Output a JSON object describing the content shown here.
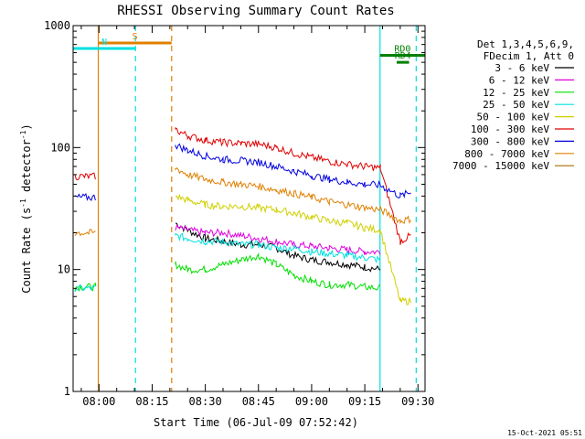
{
  "chart_data": {
    "type": "line",
    "title": "RHESSI Observing Summary Count Rates",
    "xlabel": "Start Time (06-Jul-09 07:52:42)",
    "ylabel_main": "Count Rate (s",
    "ylabel_sup": "-1",
    "ylabel_mid": " detector",
    "ylabel_end": ")",
    "y_scale": "log",
    "ylim": [
      1,
      1000
    ],
    "xlim_minutes": [
      -7.3,
      92.0
    ],
    "x_ticks": [
      {
        "label": "08:00",
        "minute": 0
      },
      {
        "label": "08:15",
        "minute": 15
      },
      {
        "label": "08:30",
        "minute": 30
      },
      {
        "label": "08:45",
        "minute": 45
      },
      {
        "label": "09:00",
        "minute": 60
      },
      {
        "label": "09:15",
        "minute": 75
      },
      {
        "label": "09:30",
        "minute": 90
      }
    ],
    "y_ticks": [
      {
        "label": "1000",
        "value": 1000
      },
      {
        "label": "100",
        "value": 100
      },
      {
        "label": "10",
        "value": 10
      },
      {
        "label": "1",
        "value": 1
      }
    ],
    "legend_header": [
      "Det 1,3,4,5,6,9,",
      "FDecim 1, Att 0"
    ],
    "legend_position": "top-right",
    "series": [
      {
        "name": "3 - 6 keV",
        "color": "#000000",
        "x": [
          21.6,
          25,
          30,
          35,
          40,
          45,
          50,
          55,
          60,
          65,
          70,
          75,
          79.4
        ],
        "y": [
          24,
          21,
          18,
          17,
          16,
          16,
          15,
          13,
          12,
          11.5,
          11,
          10.5,
          10
        ]
      },
      {
        "name": "6 - 12 keV",
        "color": "#e000e0",
        "x": [
          21.6,
          25,
          30,
          35,
          40,
          45,
          50,
          55,
          60,
          65,
          70,
          75,
          79.4
        ],
        "y": [
          22,
          21,
          20,
          20,
          19,
          18,
          17,
          16,
          15.5,
          15,
          14.5,
          14,
          14
        ]
      },
      {
        "name": "12 - 25 keV",
        "color": "#00e000",
        "x": [
          -6.8,
          -1,
          -0.9,
          21.6,
          25,
          30,
          35,
          40,
          45,
          50,
          55,
          60,
          65,
          70,
          75,
          79.4
        ],
        "y": [
          7.2,
          7.2,
          7.2,
          11,
          10,
          10,
          11,
          12,
          13,
          11,
          9,
          8,
          7.5,
          7.5,
          7.2,
          7
        ]
      },
      {
        "name": "25 - 50 keV",
        "color": "#00e0e0",
        "x": [
          -6.8,
          -1,
          21.6,
          25,
          30,
          35,
          40,
          45,
          50,
          55,
          60,
          65,
          70,
          75,
          79.4
        ],
        "y": [
          7,
          7,
          19,
          18,
          17,
          17,
          16,
          16,
          15,
          15,
          14,
          13.5,
          13,
          12.5,
          12
        ]
      },
      {
        "name": "50 - 100 keV",
        "color": "#d0d000",
        "x": [
          21.6,
          25,
          30,
          35,
          40,
          45,
          50,
          55,
          60,
          65,
          70,
          75,
          79.4,
          85,
          88
        ],
        "y": [
          40,
          37,
          34,
          33,
          33,
          32,
          31,
          29,
          27,
          25,
          24,
          22,
          21,
          5.5,
          5.5
        ]
      },
      {
        "name": "100 - 300 keV",
        "color": "#e00000",
        "x": [
          -6.8,
          -1,
          21.6,
          25,
          30,
          35,
          40,
          45,
          50,
          55,
          60,
          65,
          70,
          75,
          79.4,
          85,
          88
        ],
        "y": [
          58,
          58,
          140,
          125,
          115,
          110,
          108,
          107,
          100,
          90,
          83,
          77,
          73,
          70,
          68,
          17,
          19
        ]
      },
      {
        "name": "300 - 800 keV",
        "color": "#0000e0",
        "x": [
          -6.8,
          -1,
          21.6,
          25,
          30,
          35,
          40,
          45,
          50,
          55,
          60,
          65,
          70,
          75,
          79.4,
          85,
          88
        ],
        "y": [
          39,
          39,
          105,
          95,
          85,
          80,
          78,
          76,
          70,
          64,
          59,
          55,
          52,
          50,
          49,
          40,
          43
        ]
      },
      {
        "name": "800 - 7000 keV",
        "color": "#e08000",
        "x": [
          -6.8,
          -1,
          21.6,
          25,
          30,
          35,
          40,
          45,
          50,
          55,
          60,
          65,
          70,
          75,
          79.4,
          85,
          88
        ],
        "y": [
          20,
          20,
          68,
          60,
          55,
          52,
          50,
          48,
          45,
          42,
          39,
          36,
          34,
          32,
          31,
          25,
          26
        ]
      },
      {
        "name": "7000 - 15000 keV",
        "color": "#a07000",
        "x": [],
        "y": []
      }
    ],
    "annotations": [
      {
        "label": "S",
        "color": "#e08000",
        "x_start": -0.2,
        "x_end": 20.5,
        "level": 720
      },
      {
        "label": "N",
        "color": "#00e0e0",
        "x_start": -7.3,
        "x_end": 10.3,
        "level": 650
      },
      {
        "label": "RD0",
        "color": "#008000",
        "x_start": 79.3,
        "x_end": 92.0,
        "level": 570
      },
      {
        "label": "RD4",
        "color": "#008000",
        "x_start": 84.0,
        "x_end": 87.5,
        "level": 500
      }
    ],
    "vertical_lines": [
      {
        "minute": -0.2,
        "color": "#e08000",
        "style": "solid"
      },
      {
        "minute": 10.3,
        "color": "#00e0e0",
        "style": "dashed"
      },
      {
        "minute": 20.5,
        "color": "#e08000",
        "style": "dashed"
      },
      {
        "minute": 79.3,
        "color": "#00e0e0",
        "style": "solid"
      },
      {
        "minute": 89.5,
        "color": "#00e0e0",
        "style": "dashed"
      }
    ],
    "footer_date": "15-Oct-2021 05:51"
  }
}
